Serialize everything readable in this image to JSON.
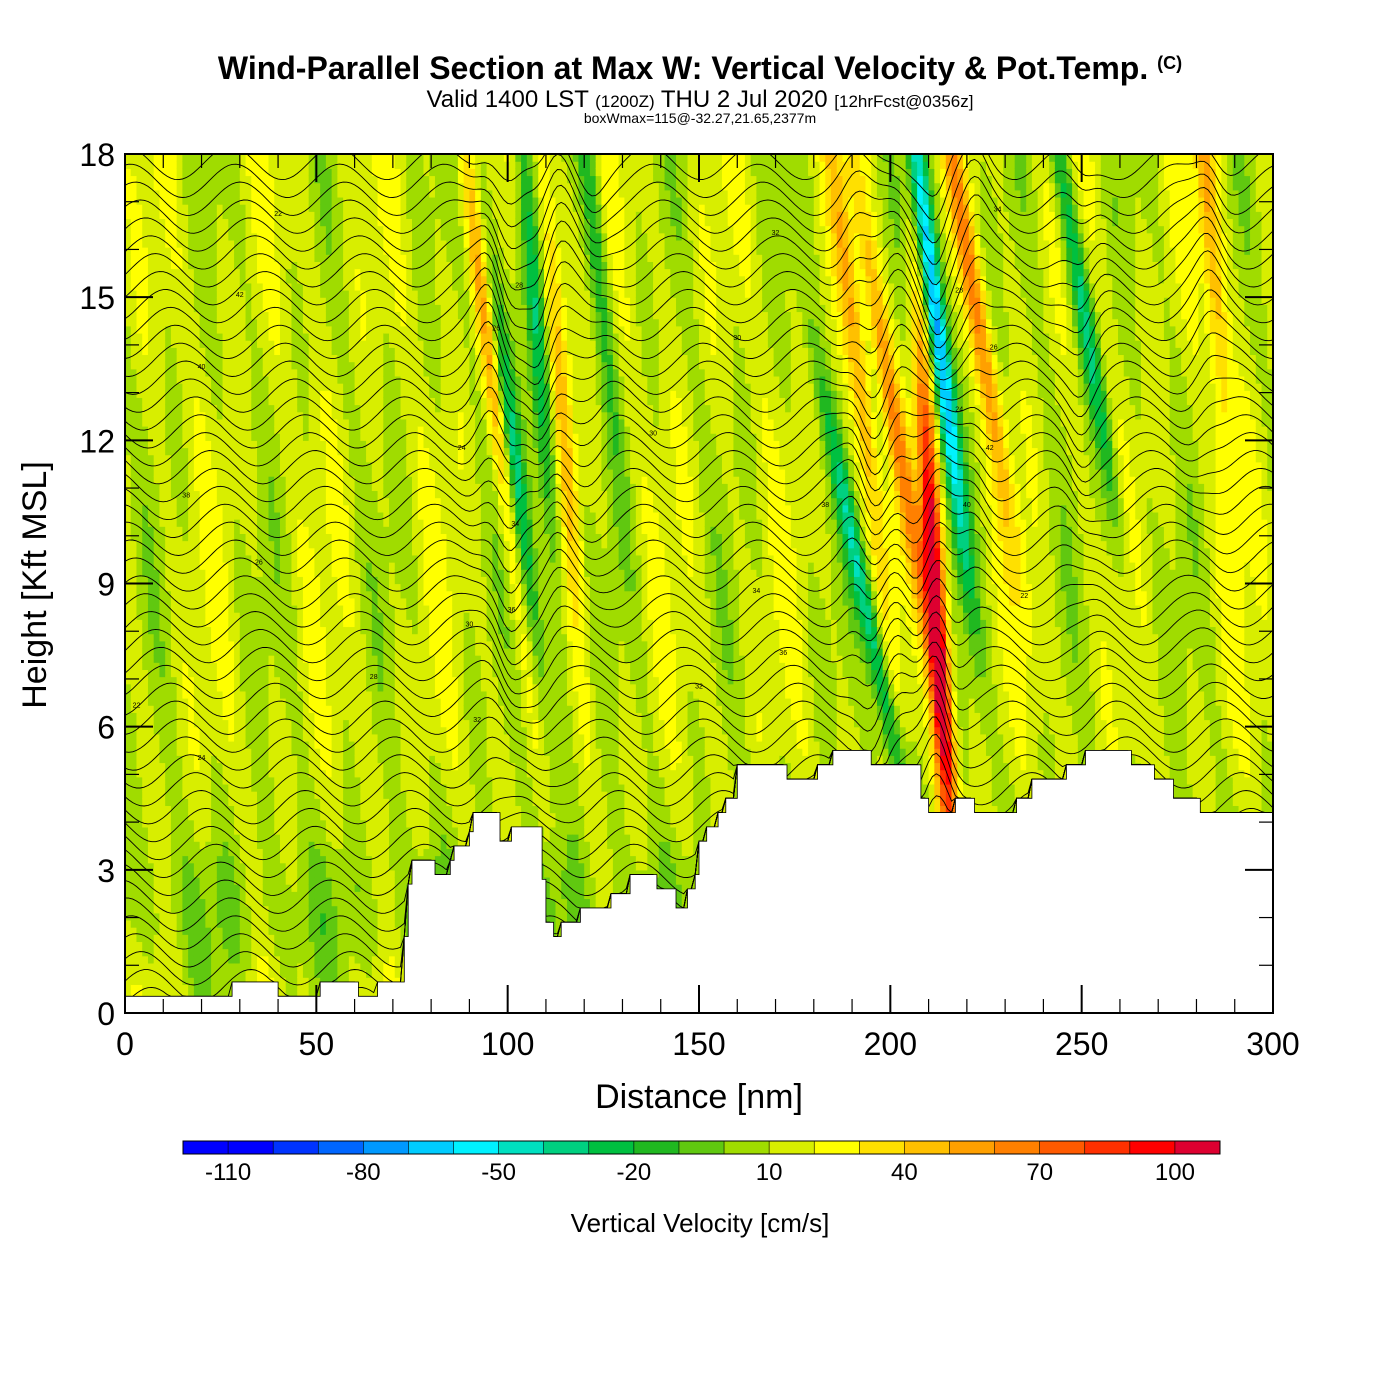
{
  "header": {
    "title": "Wind-Parallel Section at Max W: Vertical Velocity & Pot.Temp.",
    "title_mark": "(C)",
    "valid_prefix": "Valid 1400 LST",
    "valid_zulu": "(1200Z)",
    "valid_date": "THU 2 Jul 2020",
    "forecast": "[12hrFcst@0356z]",
    "box_note": "boxWmax=115@-32.27,21.65,2377m"
  },
  "chart_data": {
    "type": "heatmap",
    "xlabel": "Distance [nm]",
    "ylabel": "Height [Kft MSL]",
    "xlim": [
      0,
      300
    ],
    "ylim": [
      0,
      18
    ],
    "x_ticks": [
      0,
      50,
      100,
      150,
      200,
      250,
      300
    ],
    "y_ticks": [
      0,
      3,
      6,
      9,
      12,
      15,
      18
    ],
    "colorbar": {
      "title": "Vertical Velocity [cm/s]",
      "min": -115,
      "max": 115,
      "step": 10,
      "labels": [
        -110,
        -80,
        -50,
        -20,
        10,
        40,
        70,
        100
      ],
      "colors": [
        "#0000ff",
        "#0033ff",
        "#0066ff",
        "#0099ff",
        "#00ccff",
        "#00f2ff",
        "#00e0c0",
        "#00d080",
        "#00c040",
        "#20b820",
        "#60c810",
        "#a0dc00",
        "#d8ee00",
        "#ffff00",
        "#ffe000",
        "#ffc000",
        "#ffa000",
        "#ff8000",
        "#ff5a00",
        "#ff3000",
        "#ff0000",
        "#dd0030"
      ]
    },
    "terrain_kft": [
      [
        0,
        0.35
      ],
      [
        27,
        0.35
      ],
      [
        28,
        0.65
      ],
      [
        39,
        0.65
      ],
      [
        40,
        0.35
      ],
      [
        50,
        0.35
      ],
      [
        51,
        0.65
      ],
      [
        60,
        0.65
      ],
      [
        61,
        0.35
      ],
      [
        65,
        0.35
      ],
      [
        66,
        0.65
      ],
      [
        72,
        0.65
      ],
      [
        73,
        1.6
      ],
      [
        74,
        2.7
      ],
      [
        75,
        3.2
      ],
      [
        80,
        3.2
      ],
      [
        81,
        2.9
      ],
      [
        84,
        2.9
      ],
      [
        85,
        3.2
      ],
      [
        86,
        3.5
      ],
      [
        89,
        3.5
      ],
      [
        90,
        3.8
      ],
      [
        91,
        4.2
      ],
      [
        97,
        4.2
      ],
      [
        98,
        3.6
      ],
      [
        100,
        3.6
      ],
      [
        101,
        3.9
      ],
      [
        108,
        3.9
      ],
      [
        109,
        2.8
      ],
      [
        110,
        1.9
      ],
      [
        112,
        1.6
      ],
      [
        114,
        1.9
      ],
      [
        118,
        1.9
      ],
      [
        119,
        2.2
      ],
      [
        124,
        2.2
      ],
      [
        127,
        2.5
      ],
      [
        131,
        2.5
      ],
      [
        132,
        2.9
      ],
      [
        138,
        2.9
      ],
      [
        139,
        2.6
      ],
      [
        143,
        2.6
      ],
      [
        144,
        2.2
      ],
      [
        146,
        2.2
      ],
      [
        147,
        2.6
      ],
      [
        149,
        2.9
      ],
      [
        150,
        3.6
      ],
      [
        152,
        3.9
      ],
      [
        155,
        4.2
      ],
      [
        157,
        4.5
      ],
      [
        160,
        5.2
      ],
      [
        172,
        5.2
      ],
      [
        173,
        4.9
      ],
      [
        180,
        4.9
      ],
      [
        181,
        5.2
      ],
      [
        184,
        5.2
      ],
      [
        185,
        5.5
      ],
      [
        194,
        5.5
      ],
      [
        195,
        5.2
      ],
      [
        207,
        5.2
      ],
      [
        208,
        4.5
      ],
      [
        209,
        4.5
      ],
      [
        210,
        4.2
      ],
      [
        216,
        4.2
      ],
      [
        217,
        4.5
      ],
      [
        221,
        4.5
      ],
      [
        222,
        4.2
      ],
      [
        232,
        4.2
      ],
      [
        233,
        4.5
      ],
      [
        236,
        4.5
      ],
      [
        237,
        4.9
      ],
      [
        245,
        4.9
      ],
      [
        246,
        5.2
      ],
      [
        250,
        5.2
      ],
      [
        251,
        5.5
      ],
      [
        262,
        5.5
      ],
      [
        263,
        5.2
      ],
      [
        268,
        5.2
      ],
      [
        269,
        4.9
      ],
      [
        273,
        4.9
      ],
      [
        274,
        4.5
      ],
      [
        280,
        4.5
      ],
      [
        281,
        4.2
      ],
      [
        300,
        4.2
      ]
    ],
    "updrafts": [
      {
        "x": 95,
        "z": 14,
        "w": 45,
        "tilt": -6
      },
      {
        "x": 113,
        "z": 14,
        "w": 40,
        "tilt": -4
      },
      {
        "x": 191,
        "z": 14,
        "w": 35,
        "tilt": -6
      },
      {
        "x": 202,
        "z": 12,
        "w": 45,
        "tilt": -8
      },
      {
        "x": 212,
        "z": 8.5,
        "w": 115,
        "tilt": -3
      },
      {
        "x": 222,
        "z": 15,
        "w": 45,
        "tilt": -8
      },
      {
        "x": 283,
        "z": 17,
        "w": 40,
        "tilt": -4
      }
    ],
    "downdrafts": [
      {
        "x": 101,
        "z": 12,
        "w": -55,
        "tilt": -6
      },
      {
        "x": 108,
        "z": 14,
        "w": -50,
        "tilt": -4
      },
      {
        "x": 122,
        "z": 17,
        "w": -30,
        "tilt": -5
      },
      {
        "x": 195,
        "z": 8,
        "w": -50,
        "tilt": -10
      },
      {
        "x": 212,
        "z": 14.5,
        "w": -90,
        "tilt": -6
      },
      {
        "x": 250,
        "z": 15,
        "w": -45,
        "tilt": -8
      }
    ],
    "theta_contours": {
      "min_kelvin": 300,
      "max_kelvin": 348,
      "interval_kelvin": 1,
      "labels": [
        "22",
        "24",
        "26",
        "28",
        "30",
        "32",
        "34",
        "36",
        "38",
        "40",
        "42"
      ]
    }
  }
}
